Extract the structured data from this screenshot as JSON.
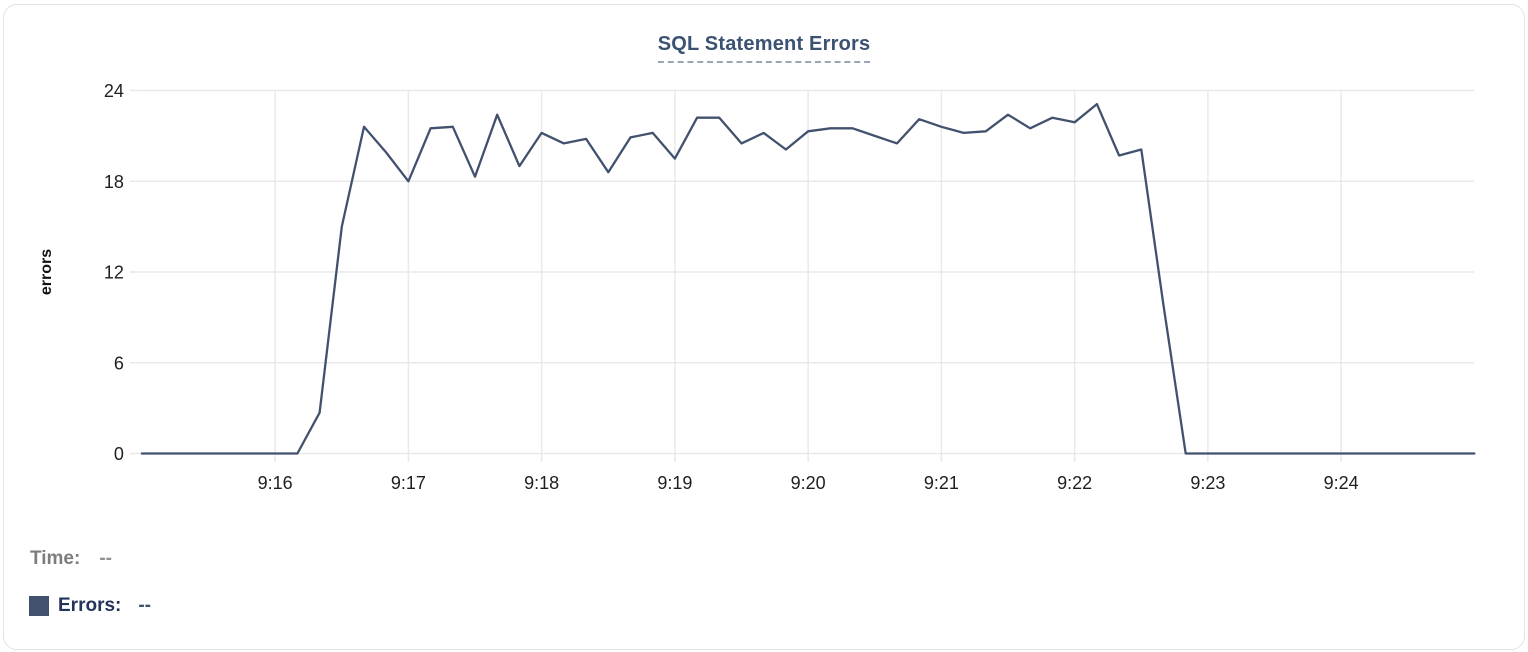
{
  "chart_data": {
    "type": "line",
    "title": "SQL Statement Errors",
    "xlabel": "",
    "ylabel": "errors",
    "ylim": [
      0,
      24
    ],
    "y_ticks": [
      0,
      6,
      12,
      18,
      24
    ],
    "x_ticks": [
      "9:16",
      "9:17",
      "9:18",
      "9:19",
      "9:20",
      "9:21",
      "9:22",
      "9:23",
      "9:24"
    ],
    "x_range": [
      "9:15:00",
      "9:25:00"
    ],
    "grid": true,
    "legend_position": "bottom-left",
    "series": [
      {
        "name": "Errors",
        "color": "#42526e",
        "points": [
          [
            "9:15:00",
            0
          ],
          [
            "9:15:30",
            0
          ],
          [
            "9:16:00",
            0
          ],
          [
            "9:16:10",
            0
          ],
          [
            "9:16:20",
            2.7
          ],
          [
            "9:16:30",
            15
          ],
          [
            "9:16:40",
            21.6
          ],
          [
            "9:16:50",
            19.9
          ],
          [
            "9:17:00",
            18
          ],
          [
            "9:17:10",
            21.5
          ],
          [
            "9:17:20",
            21.6
          ],
          [
            "9:17:30",
            18.3
          ],
          [
            "9:17:40",
            22.4
          ],
          [
            "9:17:50",
            19
          ],
          [
            "9:18:00",
            21.2
          ],
          [
            "9:18:10",
            20.5
          ],
          [
            "9:18:20",
            20.8
          ],
          [
            "9:18:30",
            18.6
          ],
          [
            "9:18:40",
            20.9
          ],
          [
            "9:18:50",
            21.2
          ],
          [
            "9:19:00",
            19.5
          ],
          [
            "9:19:10",
            22.2
          ],
          [
            "9:19:20",
            22.2
          ],
          [
            "9:19:30",
            20.5
          ],
          [
            "9:19:40",
            21.2
          ],
          [
            "9:19:50",
            20.1
          ],
          [
            "9:20:00",
            21.3
          ],
          [
            "9:20:10",
            21.5
          ],
          [
            "9:20:20",
            21.5
          ],
          [
            "9:20:30",
            21
          ],
          [
            "9:20:40",
            20.5
          ],
          [
            "9:20:50",
            22.1
          ],
          [
            "9:21:00",
            21.6
          ],
          [
            "9:21:10",
            21.2
          ],
          [
            "9:21:20",
            21.3
          ],
          [
            "9:21:30",
            22.4
          ],
          [
            "9:21:40",
            21.5
          ],
          [
            "9:21:50",
            22.2
          ],
          [
            "9:22:00",
            21.9
          ],
          [
            "9:22:10",
            23.1
          ],
          [
            "9:22:20",
            19.7
          ],
          [
            "9:22:30",
            20.1
          ],
          [
            "9:22:40",
            9.8
          ],
          [
            "9:22:50",
            0
          ],
          [
            "9:23:00",
            0
          ],
          [
            "9:24:00",
            0
          ],
          [
            "9:25:00",
            0
          ]
        ]
      }
    ]
  },
  "tooltip_readout": {
    "time_label": "Time:",
    "time_value": "--",
    "errors_label": "Errors:",
    "errors_value": "--"
  },
  "colors": {
    "line": "#42526e",
    "title": "#3b5273",
    "title_underline": "#9aa5b5",
    "grid": "#e9e9e9",
    "axis_text": "#1f1f1f",
    "time_label": "#7d7d7d",
    "errors_label": "#22345a",
    "card_border": "#e2e2e2"
  }
}
